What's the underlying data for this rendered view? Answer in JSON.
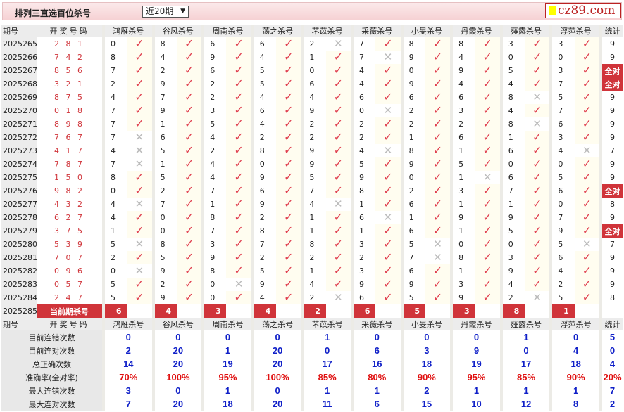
{
  "header": {
    "title": "排列三直选百位杀号",
    "period_select": "近20期",
    "logo": "cz89.com"
  },
  "columns": {
    "qihao": "期号",
    "code": "开奖号码",
    "experts": [
      "鸿雁杀号",
      "谷风杀号",
      "周南杀号",
      "荡之杀号",
      "芣苡杀号",
      "采薇杀号",
      "小旻杀号",
      "丹霞杀号",
      "薤露杀号",
      "浮萍杀号"
    ],
    "stat": "统计"
  },
  "rows": [
    {
      "qi": "2025265",
      "code": "2 8 1",
      "kills": [
        [
          "0",
          1
        ],
        [
          "8",
          1
        ],
        [
          "6",
          1
        ],
        [
          "6",
          1
        ],
        [
          "2",
          0
        ],
        [
          "7",
          1
        ],
        [
          "8",
          1
        ],
        [
          "8",
          1
        ],
        [
          "3",
          1
        ],
        [
          "3",
          1
        ]
      ],
      "stat": "9"
    },
    {
      "qi": "2025266",
      "code": "7 4 2",
      "kills": [
        [
          "8",
          1
        ],
        [
          "4",
          1
        ],
        [
          "9",
          1
        ],
        [
          "4",
          1
        ],
        [
          "1",
          1
        ],
        [
          "7",
          0
        ],
        [
          "9",
          1
        ],
        [
          "4",
          1
        ],
        [
          "0",
          1
        ],
        [
          "0",
          1
        ]
      ],
      "stat": "9"
    },
    {
      "qi": "2025267",
      "code": "8 5 6",
      "kills": [
        [
          "7",
          1
        ],
        [
          "2",
          1
        ],
        [
          "6",
          1
        ],
        [
          "5",
          1
        ],
        [
          "0",
          1
        ],
        [
          "4",
          1
        ],
        [
          "0",
          1
        ],
        [
          "9",
          1
        ],
        [
          "5",
          1
        ],
        [
          "3",
          1
        ]
      ],
      "stat": "全对"
    },
    {
      "qi": "2025268",
      "code": "3 2 1",
      "kills": [
        [
          "2",
          1
        ],
        [
          "9",
          1
        ],
        [
          "2",
          1
        ],
        [
          "5",
          1
        ],
        [
          "6",
          1
        ],
        [
          "4",
          1
        ],
        [
          "9",
          1
        ],
        [
          "4",
          1
        ],
        [
          "4",
          1
        ],
        [
          "7",
          1
        ]
      ],
      "stat": "全对"
    },
    {
      "qi": "2025269",
      "code": "8 7 5",
      "kills": [
        [
          "4",
          1
        ],
        [
          "7",
          1
        ],
        [
          "2",
          1
        ],
        [
          "4",
          1
        ],
        [
          "4",
          1
        ],
        [
          "6",
          1
        ],
        [
          "6",
          1
        ],
        [
          "6",
          1
        ],
        [
          "8",
          0
        ],
        [
          "5",
          1
        ]
      ],
      "stat": "9"
    },
    {
      "qi": "2025270",
      "code": "0 1 8",
      "kills": [
        [
          "7",
          1
        ],
        [
          "9",
          1
        ],
        [
          "3",
          1
        ],
        [
          "6",
          1
        ],
        [
          "9",
          1
        ],
        [
          "0",
          0
        ],
        [
          "2",
          1
        ],
        [
          "3",
          1
        ],
        [
          "4",
          1
        ],
        [
          "7",
          1
        ]
      ],
      "stat": "9"
    },
    {
      "qi": "2025271",
      "code": "8 9 8",
      "kills": [
        [
          "7",
          1
        ],
        [
          "1",
          1
        ],
        [
          "5",
          1
        ],
        [
          "4",
          1
        ],
        [
          "2",
          1
        ],
        [
          "2",
          1
        ],
        [
          "2",
          1
        ],
        [
          "2",
          1
        ],
        [
          "8",
          0
        ],
        [
          "6",
          1
        ]
      ],
      "stat": "9"
    },
    {
      "qi": "2025272",
      "code": "7 6 7",
      "kills": [
        [
          "7",
          0
        ],
        [
          "6",
          1
        ],
        [
          "4",
          1
        ],
        [
          "2",
          1
        ],
        [
          "2",
          1
        ],
        [
          "2",
          1
        ],
        [
          "1",
          1
        ],
        [
          "6",
          1
        ],
        [
          "1",
          1
        ],
        [
          "3",
          1
        ]
      ],
      "stat": "9"
    },
    {
      "qi": "2025273",
      "code": "4 1 7",
      "kills": [
        [
          "4",
          0
        ],
        [
          "5",
          1
        ],
        [
          "2",
          1
        ],
        [
          "8",
          1
        ],
        [
          "9",
          1
        ],
        [
          "4",
          0
        ],
        [
          "8",
          1
        ],
        [
          "1",
          1
        ],
        [
          "6",
          1
        ],
        [
          "4",
          0
        ]
      ],
      "stat": "7"
    },
    {
      "qi": "2025274",
      "code": "7 8 7",
      "kills": [
        [
          "7",
          0
        ],
        [
          "1",
          1
        ],
        [
          "4",
          1
        ],
        [
          "0",
          1
        ],
        [
          "9",
          1
        ],
        [
          "5",
          1
        ],
        [
          "9",
          1
        ],
        [
          "5",
          1
        ],
        [
          "0",
          1
        ],
        [
          "0",
          1
        ]
      ],
      "stat": "9"
    },
    {
      "qi": "2025275",
      "code": "1 5 0",
      "kills": [
        [
          "8",
          1
        ],
        [
          "5",
          1
        ],
        [
          "4",
          1
        ],
        [
          "9",
          1
        ],
        [
          "5",
          1
        ],
        [
          "9",
          1
        ],
        [
          "0",
          1
        ],
        [
          "1",
          0
        ],
        [
          "6",
          1
        ],
        [
          "5",
          1
        ]
      ],
      "stat": "9"
    },
    {
      "qi": "2025276",
      "code": "9 8 2",
      "kills": [
        [
          "0",
          1
        ],
        [
          "2",
          1
        ],
        [
          "7",
          1
        ],
        [
          "6",
          1
        ],
        [
          "7",
          1
        ],
        [
          "8",
          1
        ],
        [
          "2",
          1
        ],
        [
          "3",
          1
        ],
        [
          "7",
          1
        ],
        [
          "6",
          1
        ]
      ],
      "stat": "全对"
    },
    {
      "qi": "2025277",
      "code": "4 3 2",
      "kills": [
        [
          "4",
          0
        ],
        [
          "7",
          1
        ],
        [
          "1",
          1
        ],
        [
          "9",
          1
        ],
        [
          "4",
          0
        ],
        [
          "1",
          1
        ],
        [
          "6",
          1
        ],
        [
          "1",
          1
        ],
        [
          "1",
          1
        ],
        [
          "0",
          1
        ]
      ],
      "stat": "8"
    },
    {
      "qi": "2025278",
      "code": "6 2 7",
      "kills": [
        [
          "4",
          1
        ],
        [
          "0",
          1
        ],
        [
          "8",
          1
        ],
        [
          "2",
          1
        ],
        [
          "1",
          1
        ],
        [
          "6",
          0
        ],
        [
          "1",
          1
        ],
        [
          "9",
          1
        ],
        [
          "9",
          1
        ],
        [
          "7",
          1
        ]
      ],
      "stat": "9"
    },
    {
      "qi": "2025279",
      "code": "3 7 5",
      "kills": [
        [
          "1",
          1
        ],
        [
          "0",
          1
        ],
        [
          "7",
          1
        ],
        [
          "8",
          1
        ],
        [
          "1",
          1
        ],
        [
          "1",
          1
        ],
        [
          "6",
          1
        ],
        [
          "1",
          1
        ],
        [
          "5",
          1
        ],
        [
          "9",
          1
        ]
      ],
      "stat": "全对"
    },
    {
      "qi": "2025280",
      "code": "5 3 9",
      "kills": [
        [
          "5",
          0
        ],
        [
          "8",
          1
        ],
        [
          "3",
          1
        ],
        [
          "7",
          1
        ],
        [
          "8",
          1
        ],
        [
          "3",
          1
        ],
        [
          "5",
          0
        ],
        [
          "0",
          1
        ],
        [
          "0",
          1
        ],
        [
          "5",
          0
        ]
      ],
      "stat": "7"
    },
    {
      "qi": "2025281",
      "code": "7 0 7",
      "kills": [
        [
          "2",
          1
        ],
        [
          "5",
          1
        ],
        [
          "9",
          1
        ],
        [
          "2",
          1
        ],
        [
          "2",
          1
        ],
        [
          "2",
          1
        ],
        [
          "7",
          0
        ],
        [
          "8",
          1
        ],
        [
          "3",
          1
        ],
        [
          "6",
          1
        ]
      ],
      "stat": "9"
    },
    {
      "qi": "2025282",
      "code": "0 9 6",
      "kills": [
        [
          "0",
          0
        ],
        [
          "9",
          1
        ],
        [
          "8",
          1
        ],
        [
          "5",
          1
        ],
        [
          "1",
          1
        ],
        [
          "3",
          1
        ],
        [
          "6",
          1
        ],
        [
          "1",
          1
        ],
        [
          "9",
          1
        ],
        [
          "4",
          1
        ]
      ],
      "stat": "9"
    },
    {
      "qi": "2025283",
      "code": "0 5 7",
      "kills": [
        [
          "5",
          1
        ],
        [
          "2",
          1
        ],
        [
          "0",
          0
        ],
        [
          "9",
          1
        ],
        [
          "4",
          1
        ],
        [
          "9",
          1
        ],
        [
          "9",
          1
        ],
        [
          "3",
          1
        ],
        [
          "4",
          1
        ],
        [
          "2",
          1
        ]
      ],
      "stat": "9"
    },
    {
      "qi": "2025284",
      "code": "2 4 7",
      "kills": [
        [
          "5",
          1
        ],
        [
          "9",
          1
        ],
        [
          "0",
          1
        ],
        [
          "4",
          1
        ],
        [
          "2",
          0
        ],
        [
          "6",
          1
        ],
        [
          "5",
          1
        ],
        [
          "9",
          1
        ],
        [
          "2",
          0
        ],
        [
          "5",
          1
        ]
      ],
      "stat": "8"
    }
  ],
  "current": {
    "qi": "2025285",
    "label": "当前期杀号",
    "kills": [
      "6",
      "4",
      "3",
      "4",
      "2",
      "6",
      "5",
      "3",
      "8",
      "1"
    ]
  },
  "summary": [
    {
      "label": "目前连错次数",
      "values": [
        "0",
        "0",
        "0",
        "0",
        "1",
        "0",
        "0",
        "0",
        "1",
        "0"
      ],
      "stat": "5",
      "color": "blue"
    },
    {
      "label": "目前连对次数",
      "values": [
        "2",
        "20",
        "1",
        "20",
        "0",
        "6",
        "3",
        "9",
        "0",
        "4"
      ],
      "stat": "0",
      "color": "blue"
    },
    {
      "label": "总正确次数",
      "values": [
        "14",
        "20",
        "19",
        "20",
        "17",
        "16",
        "18",
        "19",
        "17",
        "18"
      ],
      "stat": "4",
      "color": "blue"
    },
    {
      "label": "准确率(全对率)",
      "values": [
        "70%",
        "100%",
        "95%",
        "100%",
        "85%",
        "80%",
        "90%",
        "95%",
        "85%",
        "90%"
      ],
      "stat": "20%",
      "color": "red"
    },
    {
      "label": "最大连错次数",
      "values": [
        "3",
        "0",
        "1",
        "0",
        "1",
        "1",
        "2",
        "1",
        "1",
        "1"
      ],
      "stat": "7",
      "color": "blue"
    },
    {
      "label": "最大连对次数",
      "values": [
        "7",
        "20",
        "18",
        "20",
        "11",
        "6",
        "15",
        "10",
        "12",
        "8"
      ],
      "stat": "2",
      "color": "blue"
    }
  ],
  "icons": {
    "correct": "check-icon",
    "wrong": "cross-icon"
  },
  "colors": {
    "accent": "#d0343a",
    "check": "#e04050",
    "summary_blue": "#1020c8",
    "summary_red": "#e01010"
  }
}
